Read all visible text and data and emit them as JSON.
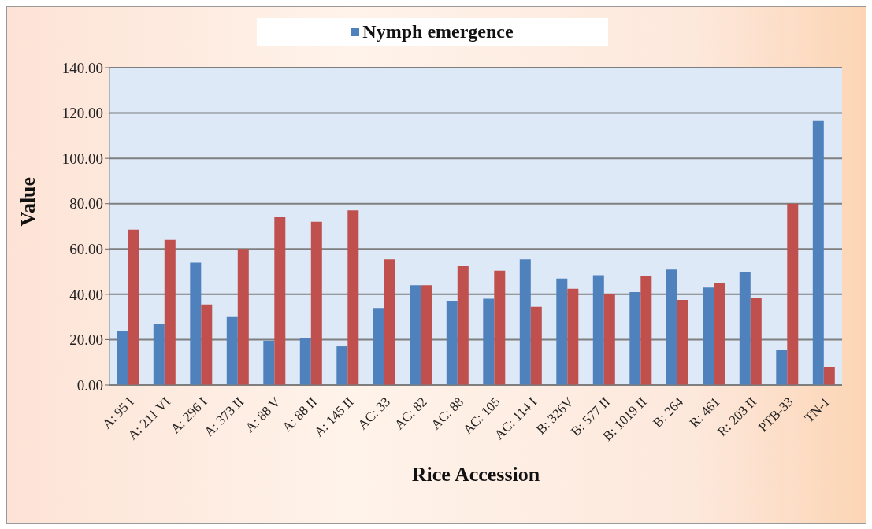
{
  "chart_data": {
    "type": "bar",
    "xlabel": "Rice Accession",
    "ylabel": "Value",
    "categories": [
      "A: 95 I",
      "A: 211 VI",
      "A: 296 I",
      "A: 373 II",
      "A: 88 V",
      "A: 88 II",
      "A: 145 II",
      "AC: 33",
      "AC: 82",
      "AC: 88",
      "AC: 105",
      "AC: 114 I",
      "B: 326V",
      "B: 577 II",
      "B: 1019 II",
      "B: 264",
      "R: 461",
      "R: 203 II",
      "PTB-33",
      "TN-1"
    ],
    "series": [
      {
        "name": "Nymph emergence",
        "color": "#4f81bd",
        "values": [
          24,
          27,
          54,
          30,
          19.5,
          20.5,
          17,
          34,
          44,
          37,
          38,
          55.5,
          47,
          48.5,
          41,
          51,
          43,
          50,
          15.5,
          116.5
        ]
      },
      {
        "color": "#c0504d",
        "values": [
          68.5,
          64,
          35.5,
          60,
          74,
          72,
          77,
          55.5,
          44,
          52.5,
          50.5,
          34.5,
          42.5,
          40,
          48,
          37.5,
          45,
          38.5,
          80,
          8
        ]
      }
    ],
    "ylim": [
      0,
      140
    ],
    "yticks": [
      {
        "value": 0,
        "label": "0.00"
      },
      {
        "value": 20,
        "label": "20.00"
      },
      {
        "value": 40,
        "label": "40.00"
      },
      {
        "value": 60,
        "label": "60.00"
      },
      {
        "value": 80,
        "label": "80.00"
      },
      {
        "value": 100,
        "label": "100.00"
      },
      {
        "value": 120,
        "label": "120.00"
      },
      {
        "value": 140,
        "label": "140.00"
      }
    ],
    "grid": "y",
    "legend": "top"
  }
}
